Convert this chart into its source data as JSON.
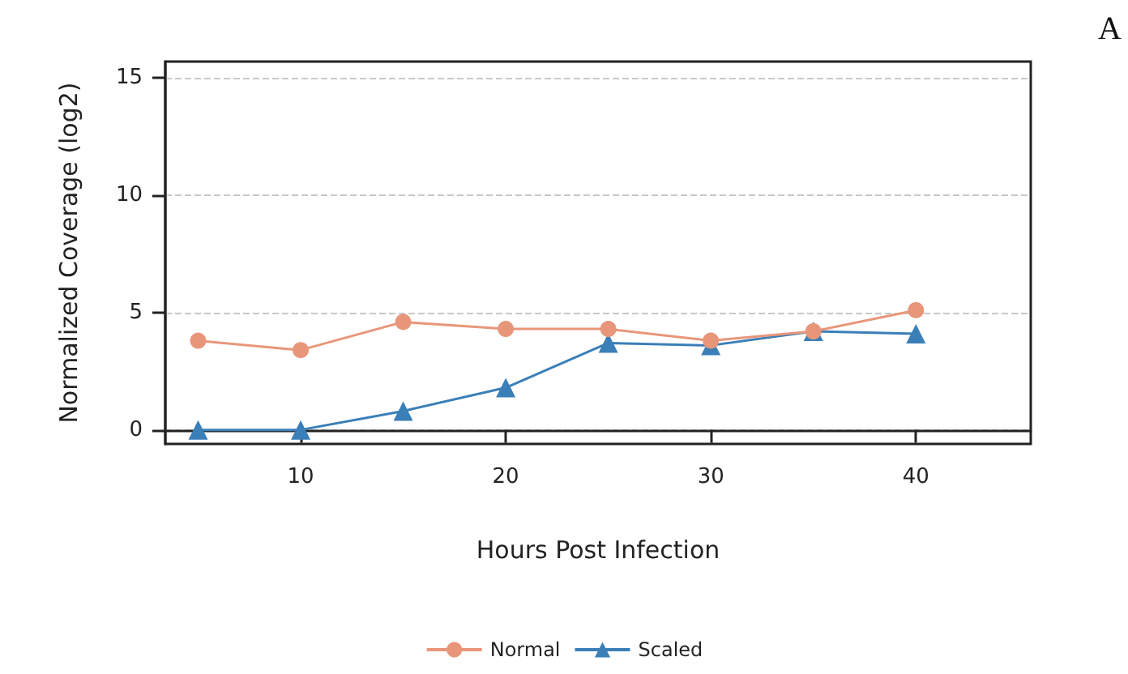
{
  "chart_data": {
    "type": "line",
    "xlabel": "Hours Post Infection",
    "ylabel": "Normalized Coverage (log2)",
    "annotations": [
      "A"
    ],
    "x": [
      5,
      10,
      15,
      20,
      25,
      30,
      35,
      40
    ],
    "series": [
      {
        "name": "Normal",
        "color": "#e8967a",
        "marker": "circle",
        "values": [
          3.8,
          3.4,
          4.6,
          4.3,
          4.3,
          3.8,
          4.2,
          5.1
        ]
      },
      {
        "name": "Scaled",
        "color": "#3a7fb8",
        "marker": "triangle",
        "values": [
          0,
          0,
          0.8,
          1.8,
          3.7,
          3.6,
          4.2,
          4.1
        ]
      }
    ],
    "xlim": [
      3.4,
      45.6
    ],
    "xticks": [
      10,
      20,
      30,
      40
    ],
    "ylim": [
      -0.6,
      15.7
    ],
    "yticks": [
      0,
      5,
      10,
      15
    ],
    "grid": "y",
    "legend": "bottom",
    "line_style": "solid"
  }
}
